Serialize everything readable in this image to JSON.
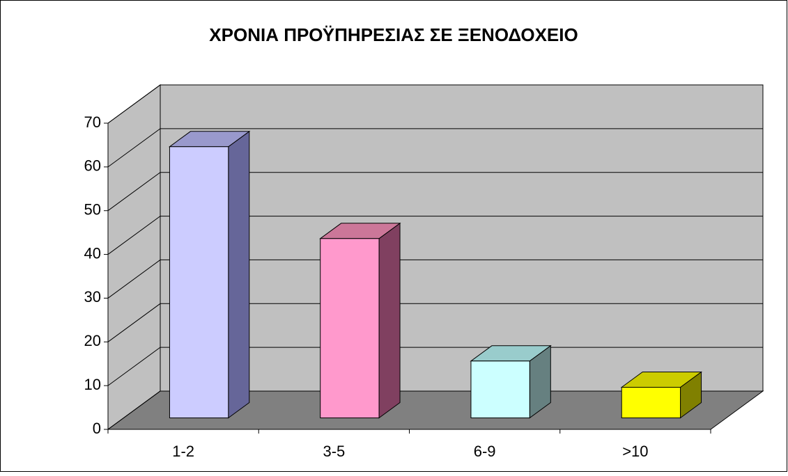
{
  "chart_data": {
    "type": "bar3d",
    "title": "ΧΡΟΝΙΑ ΠΡΟΫΠΗΡΕΣΙΑΣ ΣΕ ΞΕΝΟΔΟΧΕΙΟ",
    "categories": [
      "1-2",
      "3-5",
      "6-9",
      ">10"
    ],
    "values": [
      62,
      41,
      13,
      7
    ],
    "colors": [
      "#ccccff",
      "#ff99cc",
      "#ccffff",
      "#ffff00"
    ],
    "side_colors": [
      "#666699",
      "#804060",
      "#668080",
      "#808000"
    ],
    "top_colors": [
      "#9999cc",
      "#cc7799",
      "#99cccc",
      "#cccc00"
    ],
    "ylim": [
      0,
      70
    ],
    "yticks": [
      0,
      10,
      20,
      30,
      40,
      50,
      60,
      70
    ],
    "grid": true
  }
}
